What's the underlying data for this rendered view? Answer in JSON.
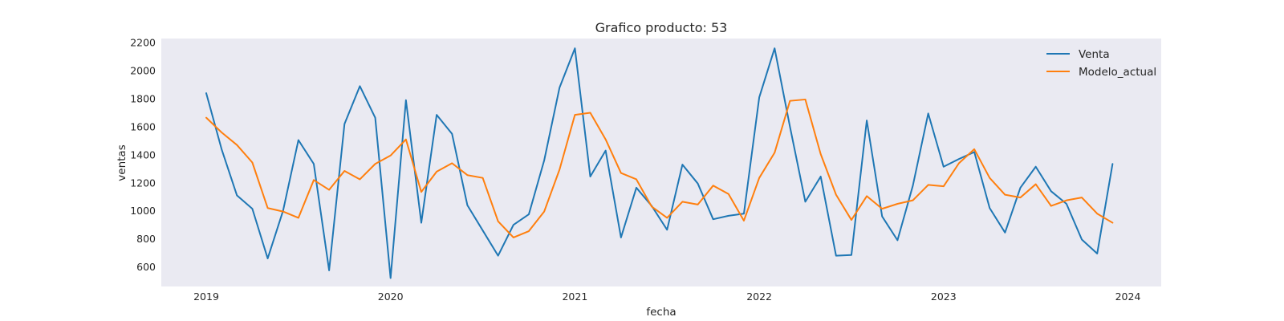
{
  "chart_data": {
    "type": "line",
    "title": "Grafico producto: 53",
    "xlabel": "fecha",
    "ylabel": "ventas",
    "x_ticks": [
      "2019",
      "2020",
      "2021",
      "2022",
      "2023",
      "2024"
    ],
    "y_ticks": [
      600,
      800,
      1000,
      1200,
      1400,
      1600,
      1800,
      2000,
      2200
    ],
    "ylim": [
      460,
      2230
    ],
    "xlim": [
      "2018-11",
      "2024-04"
    ],
    "start": "2019-01",
    "frequency": "monthly",
    "grid": false,
    "background": "#eaeaf2",
    "legend": "top-right",
    "series": [
      {
        "name": "Venta",
        "color": "#1f77b4",
        "values": [
          1840,
          1440,
          1110,
          1015,
          660,
          1000,
          1505,
          1335,
          575,
          1620,
          1890,
          1665,
          520,
          1790,
          915,
          1685,
          1550,
          1040,
          860,
          680,
          900,
          975,
          1360,
          1880,
          2160,
          1245,
          1430,
          810,
          1165,
          1035,
          865,
          1330,
          1195,
          940,
          965,
          980,
          1810,
          2160,
          1600,
          1065,
          1245,
          680,
          685,
          1645,
          960,
          790,
          1180,
          1695,
          1315,
          1370,
          1420,
          1020,
          845,
          1165,
          1315,
          1140,
          1050,
          795,
          695,
          1335
        ]
      },
      {
        "name": "Modelo_actual",
        "color": "#ff7f0e",
        "values": [
          1665,
          1560,
          1470,
          1345,
          1020,
          995,
          950,
          1220,
          1150,
          1285,
          1225,
          1335,
          1395,
          1510,
          1135,
          1280,
          1340,
          1255,
          1235,
          925,
          810,
          855,
          995,
          1295,
          1685,
          1700,
          1510,
          1270,
          1225,
          1030,
          950,
          1065,
          1045,
          1180,
          1120,
          930,
          1235,
          1415,
          1785,
          1795,
          1405,
          1115,
          935,
          1105,
          1015,
          1050,
          1075,
          1185,
          1175,
          1340,
          1440,
          1235,
          1115,
          1095,
          1190,
          1035,
          1075,
          1095,
          980,
          915
        ]
      }
    ]
  }
}
